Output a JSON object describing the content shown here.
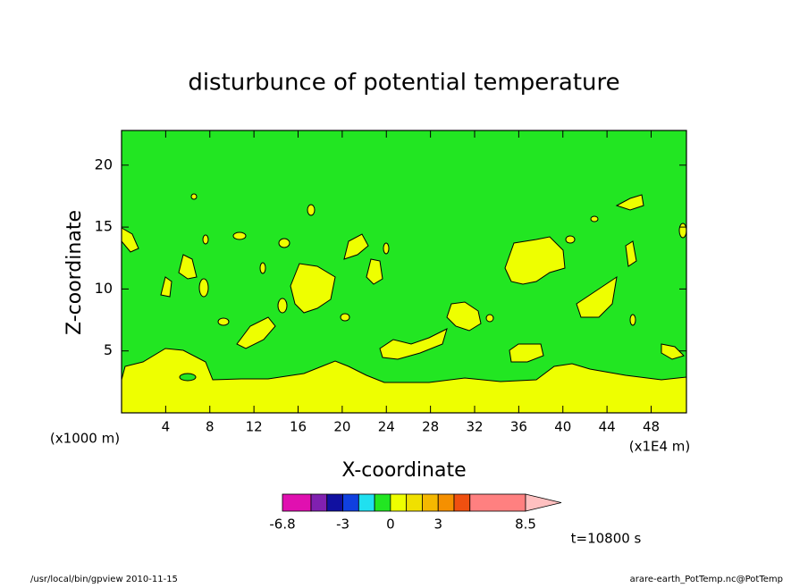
{
  "chart_data": {
    "type": "contour",
    "title": "disturbunce of potential temperature",
    "xlabel": "X-coordinate",
    "ylabel": "Z-coordinate",
    "x_unit": "(x1E4 m)",
    "y_unit": "(x1000 m)",
    "xlim": [
      0,
      51.2
    ],
    "ylim": [
      0,
      22.8
    ],
    "xticks": [
      4,
      8,
      12,
      16,
      20,
      24,
      28,
      32,
      36,
      40,
      44,
      48
    ],
    "yticks": [
      5,
      10,
      15,
      20
    ],
    "colorbar": {
      "levels": [
        -6.8,
        -5,
        -4,
        -3,
        -2,
        -1,
        0,
        1,
        2,
        3,
        4,
        5,
        8.5
      ],
      "colors": [
        "#e010b0",
        "#8020b0",
        "#1010a0",
        "#1040e0",
        "#20e0f0",
        "#22e622",
        "#eeff00",
        "#f0e000",
        "#f5b800",
        "#f59000",
        "#f05010",
        "#ff8080"
      ],
      "extend_color": "#ffc0c0",
      "ticks": [
        -6.8,
        -3,
        0,
        3,
        8.5
      ]
    },
    "annotation": "t=10800 s",
    "footer_left": "/usr/local/bin/gpview   2010-11-15",
    "footer_right": "arare-earth_PotTemp.nc@PotTemp"
  }
}
